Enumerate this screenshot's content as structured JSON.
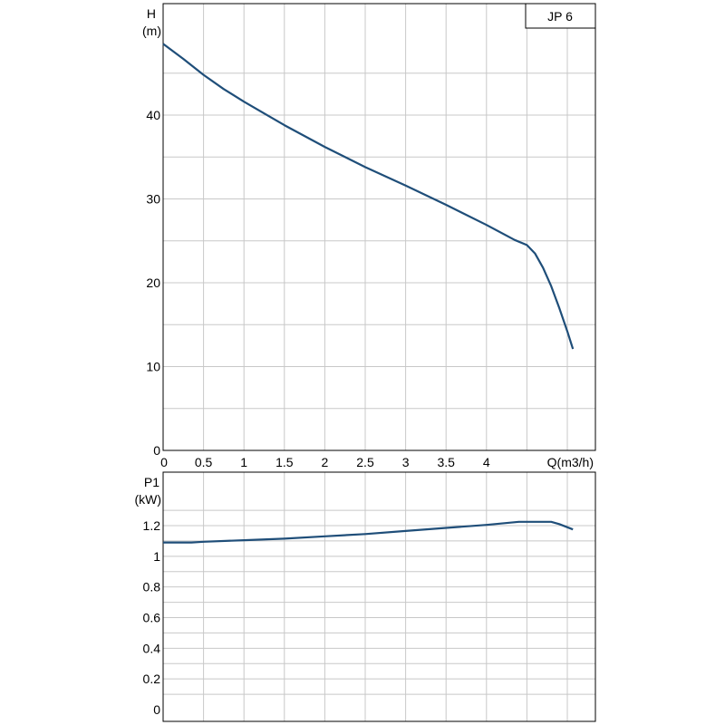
{
  "chart_data": [
    {
      "type": "line",
      "title": "",
      "legend": "JP 6",
      "ylabel_line1": "H",
      "ylabel_line2": "(m)",
      "xlabel": "Q(m3/h)",
      "xlim": [
        0,
        5.3
      ],
      "ylim": [
        0,
        50
      ],
      "x_ticks": [
        0,
        0.5,
        1,
        1.5,
        2,
        2.5,
        3,
        3.5,
        4
      ],
      "x_tick_labels": [
        "0",
        "0.5",
        "1",
        "1.5",
        "2",
        "2.5",
        "3",
        "3.5",
        "4"
      ],
      "y_ticks": [
        0,
        10,
        20,
        30,
        40
      ],
      "y_tick_labels": [
        "0",
        "10",
        "20",
        "30",
        "40"
      ],
      "grid": true,
      "line_color": "#1f4e79",
      "series": [
        {
          "x": [
            0,
            0.25,
            0.5,
            0.75,
            1,
            1.5,
            2,
            2.5,
            3,
            3.5,
            4,
            4.35,
            4.5,
            4.6,
            4.7,
            4.8,
            4.9,
            5.0,
            5.07
          ],
          "values": [
            48.5,
            46.7,
            44.8,
            43.1,
            41.6,
            38.8,
            36.2,
            33.8,
            31.6,
            29.3,
            26.9,
            25.1,
            24.5,
            23.5,
            21.8,
            19.6,
            17.0,
            14.2,
            12.1
          ]
        }
      ]
    },
    {
      "type": "line",
      "title": "",
      "ylabel_line1": "P1",
      "ylabel_line2": "(kW)",
      "xlim": [
        0,
        5.3
      ],
      "ylim": [
        0,
        1.35
      ],
      "y_ticks": [
        0,
        0.2,
        0.4,
        0.6,
        0.8,
        1,
        1.2
      ],
      "y_tick_labels": [
        "0",
        "0.2",
        "0.4",
        "0.6",
        "0.8",
        "1",
        "1.2"
      ],
      "grid": true,
      "line_color": "#1f4e79",
      "series": [
        {
          "x": [
            0,
            0.35,
            0.5,
            1,
            1.5,
            2,
            2.5,
            3,
            3.5,
            4,
            4.4,
            4.6,
            4.8,
            4.9,
            5.07
          ],
          "values": [
            1.09,
            1.09,
            1.095,
            1.105,
            1.115,
            1.13,
            1.145,
            1.165,
            1.185,
            1.205,
            1.225,
            1.225,
            1.225,
            1.21,
            1.175
          ]
        }
      ]
    }
  ]
}
